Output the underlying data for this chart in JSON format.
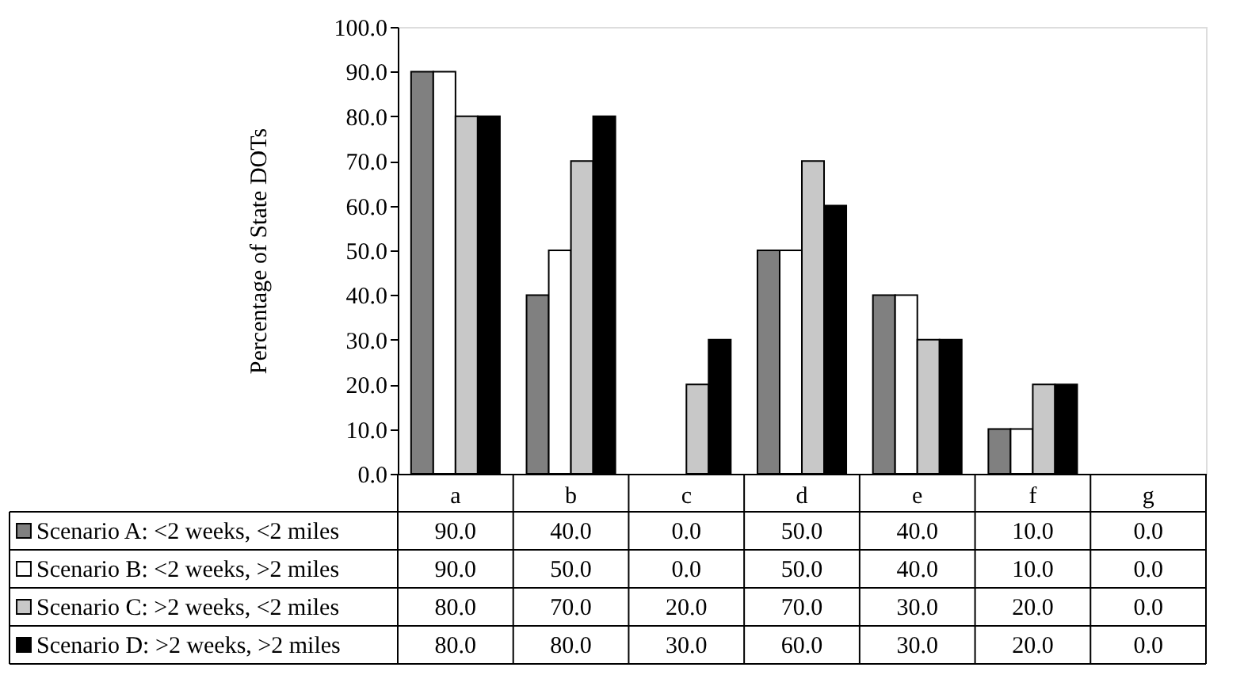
{
  "chart_data": {
    "type": "bar",
    "ylabel": "Percentage of State DOTs",
    "categories": [
      "a",
      "b",
      "c",
      "d",
      "e",
      "f",
      "g"
    ],
    "series": [
      {
        "name": "Scenario A: <2 weeks, <2 miles",
        "color": "#808080",
        "values": [
          90,
          40,
          0,
          50,
          40,
          10,
          0
        ],
        "value_labels": [
          "90.0",
          "40.0",
          "0.0",
          "50.0",
          "40.0",
          "10.0",
          "0.0"
        ]
      },
      {
        "name": "Scenario B: <2 weeks, >2 miles",
        "color": "#ffffff",
        "values": [
          90,
          50,
          0,
          50,
          40,
          10,
          0
        ],
        "value_labels": [
          "90.0",
          "50.0",
          "0.0",
          "50.0",
          "40.0",
          "10.0",
          "0.0"
        ]
      },
      {
        "name": "Scenario C: >2 weeks, <2 miles",
        "color": "#c8c8c8",
        "values": [
          80,
          70,
          20,
          70,
          30,
          20,
          0
        ],
        "value_labels": [
          "80.0",
          "70.0",
          "20.0",
          "70.0",
          "30.0",
          "20.0",
          "0.0"
        ]
      },
      {
        "name": "Scenario D: >2 weeks, >2 miles",
        "color": "#000000",
        "values": [
          80,
          80,
          30,
          60,
          30,
          20,
          0
        ],
        "value_labels": [
          "80.0",
          "80.0",
          "30.0",
          "60.0",
          "30.0",
          "20.0",
          "0.0"
        ]
      }
    ],
    "ylim": [
      0,
      100
    ],
    "yticks": [
      {
        "value": 0,
        "label": "0.0"
      },
      {
        "value": 10,
        "label": "10.0"
      },
      {
        "value": 20,
        "label": "20.0"
      },
      {
        "value": 30,
        "label": "30.0"
      },
      {
        "value": 40,
        "label": "40.0"
      },
      {
        "value": 50,
        "label": "50.0"
      },
      {
        "value": 60,
        "label": "60.0"
      },
      {
        "value": 70,
        "label": "70.0"
      },
      {
        "value": 80,
        "label": "80.0"
      },
      {
        "value": 90,
        "label": "90.0"
      },
      {
        "value": 100,
        "label": "100.0"
      }
    ],
    "grid": false,
    "legend": "bottom"
  }
}
